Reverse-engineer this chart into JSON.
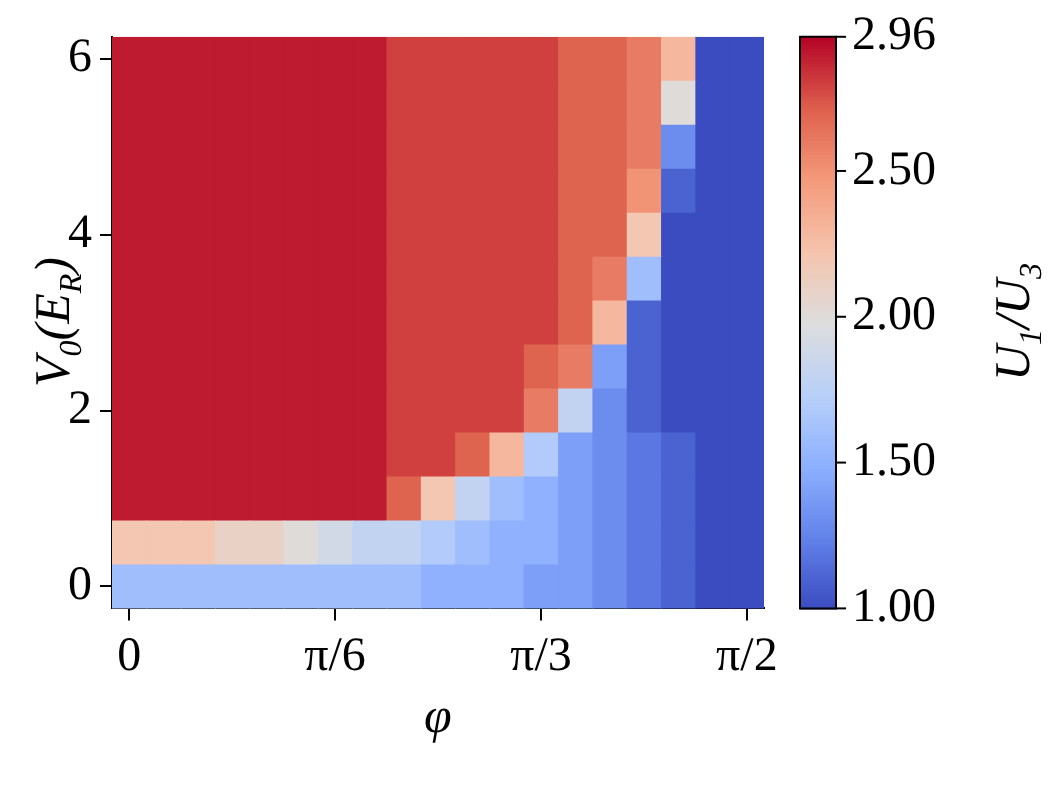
{
  "chart_data": {
    "type": "heatmap",
    "xlabel": "φ",
    "ylabel": "V$_{0}$(E$_{R}$)",
    "clabel": "U$_{1}$/U$_{3}$",
    "categories": [
      "0",
      null,
      null,
      null,
      null,
      null,
      "π/6",
      null,
      null,
      null,
      null,
      null,
      "π/3",
      null,
      null,
      null,
      null,
      null,
      "π/2"
    ],
    "y_categories": [
      "6",
      null,
      null,
      null,
      "4",
      null,
      null,
      null,
      "2",
      null,
      null,
      null,
      "0"
    ],
    "clim": [
      1,
      2.96
    ],
    "cticks": [
      {
        "value": 1,
        "label": "1.00"
      },
      {
        "value": 1.5,
        "label": "1.50"
      },
      {
        "value": 2,
        "label": "2.00"
      },
      {
        "value": 2.5,
        "label": "2.50"
      },
      {
        "value": 2.96,
        "label": "2.96"
      }
    ],
    "cells": [
      [
        2.9,
        2.9,
        2.9,
        2.9,
        2.9,
        2.9,
        2.9,
        2.9,
        2.8,
        2.8,
        2.8,
        2.8,
        2.8,
        2.7,
        2.7,
        2.6,
        2.3,
        1.0,
        1.0
      ],
      [
        2.9,
        2.9,
        2.9,
        2.9,
        2.9,
        2.9,
        2.9,
        2.9,
        2.8,
        2.8,
        2.8,
        2.8,
        2.8,
        2.7,
        2.7,
        2.6,
        2.0,
        1.0,
        1.0
      ],
      [
        2.9,
        2.9,
        2.9,
        2.9,
        2.9,
        2.9,
        2.9,
        2.9,
        2.8,
        2.8,
        2.8,
        2.8,
        2.8,
        2.7,
        2.7,
        2.6,
        1.3,
        1.0,
        1.0
      ],
      [
        2.9,
        2.9,
        2.9,
        2.9,
        2.9,
        2.9,
        2.9,
        2.9,
        2.8,
        2.8,
        2.8,
        2.8,
        2.8,
        2.7,
        2.7,
        2.5,
        1.1,
        1.0,
        1.0
      ],
      [
        2.9,
        2.9,
        2.9,
        2.9,
        2.9,
        2.9,
        2.9,
        2.9,
        2.8,
        2.8,
        2.8,
        2.8,
        2.8,
        2.7,
        2.7,
        2.2,
        1.0,
        1.0,
        1.0
      ],
      [
        2.9,
        2.9,
        2.9,
        2.9,
        2.9,
        2.9,
        2.9,
        2.9,
        2.8,
        2.8,
        2.8,
        2.8,
        2.8,
        2.7,
        2.6,
        1.6,
        1.0,
        1.0,
        1.0
      ],
      [
        2.9,
        2.9,
        2.9,
        2.9,
        2.9,
        2.9,
        2.9,
        2.9,
        2.8,
        2.8,
        2.8,
        2.8,
        2.8,
        2.7,
        2.3,
        1.1,
        1.0,
        1.0,
        1.0
      ],
      [
        2.9,
        2.9,
        2.9,
        2.9,
        2.9,
        2.9,
        2.9,
        2.9,
        2.8,
        2.8,
        2.8,
        2.8,
        2.7,
        2.6,
        1.4,
        1.1,
        1.0,
        1.0,
        1.0
      ],
      [
        2.9,
        2.9,
        2.9,
        2.9,
        2.9,
        2.9,
        2.9,
        2.9,
        2.8,
        2.8,
        2.8,
        2.8,
        2.6,
        1.8,
        1.3,
        1.1,
        1.0,
        1.0,
        1.0
      ],
      [
        2.9,
        2.9,
        2.9,
        2.9,
        2.9,
        2.9,
        2.9,
        2.9,
        2.8,
        2.8,
        2.7,
        2.3,
        1.7,
        1.4,
        1.3,
        1.2,
        1.1,
        1.0,
        1.0
      ],
      [
        2.9,
        2.9,
        2.9,
        2.9,
        2.9,
        2.9,
        2.9,
        2.9,
        2.7,
        2.2,
        1.8,
        1.6,
        1.5,
        1.4,
        1.3,
        1.2,
        1.1,
        1.0,
        1.0
      ],
      [
        2.2,
        2.2,
        2.2,
        2.1,
        2.1,
        2.0,
        1.9,
        1.8,
        1.8,
        1.7,
        1.6,
        1.5,
        1.5,
        1.4,
        1.3,
        1.2,
        1.1,
        1.0,
        1.0
      ],
      [
        1.6,
        1.6,
        1.6,
        1.6,
        1.6,
        1.6,
        1.6,
        1.6,
        1.6,
        1.5,
        1.5,
        1.5,
        1.4,
        1.4,
        1.3,
        1.2,
        1.1,
        1.0,
        1.0
      ]
    ]
  }
}
